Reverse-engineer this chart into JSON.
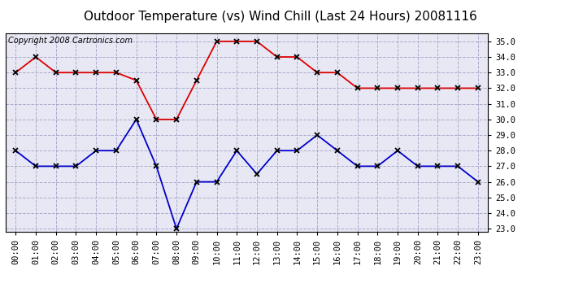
{
  "title": "Outdoor Temperature (vs) Wind Chill (Last 24 Hours) 20081116",
  "copyright_text": "Copyright 2008 Cartronics.com",
  "hours": [
    "00:00",
    "01:00",
    "02:00",
    "03:00",
    "04:00",
    "05:00",
    "06:00",
    "07:00",
    "08:00",
    "09:00",
    "10:00",
    "11:00",
    "12:00",
    "13:00",
    "14:00",
    "15:00",
    "16:00",
    "17:00",
    "18:00",
    "19:00",
    "20:00",
    "21:00",
    "22:00",
    "23:00"
  ],
  "temp_red": [
    33.0,
    34.0,
    33.0,
    33.0,
    33.0,
    33.0,
    32.5,
    30.0,
    30.0,
    32.5,
    35.0,
    35.0,
    35.0,
    34.0,
    34.0,
    33.0,
    33.0,
    32.0,
    32.0,
    32.0,
    32.0,
    32.0,
    32.0,
    32.0
  ],
  "wind_chill_blue": [
    28.0,
    27.0,
    27.0,
    27.0,
    28.0,
    28.0,
    30.0,
    27.0,
    23.0,
    26.0,
    26.0,
    28.0,
    26.5,
    28.0,
    28.0,
    29.0,
    28.0,
    27.0,
    27.0,
    28.0,
    27.0,
    27.0,
    27.0,
    26.0
  ],
  "ylim": [
    22.8,
    35.5
  ],
  "yticks": [
    23.0,
    24.0,
    25.0,
    26.0,
    27.0,
    28.0,
    29.0,
    30.0,
    31.0,
    32.0,
    33.0,
    34.0,
    35.0
  ],
  "red_color": "#dd0000",
  "blue_color": "#0000cc",
  "bg_color": "#ffffff",
  "plot_bg_color": "#e8e8f4",
  "grid_color": "#aaaacc",
  "title_fontsize": 11,
  "copyright_fontsize": 7,
  "tick_fontsize": 7.5
}
